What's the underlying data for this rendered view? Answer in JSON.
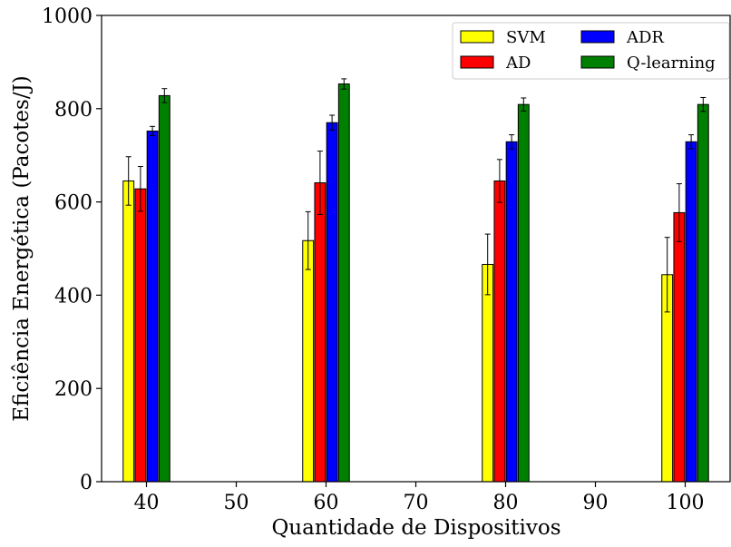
{
  "chart_data": {
    "type": "bar",
    "title": "",
    "xlabel": "Quantidade de Dispositivos",
    "ylabel": "Eficiência Energética (Pacotes/J)",
    "xlim": [
      35,
      105
    ],
    "ylim": [
      0,
      1000
    ],
    "xticks": [
      40,
      50,
      60,
      70,
      80,
      90,
      100
    ],
    "yticks": [
      0,
      200,
      400,
      600,
      800,
      1000
    ],
    "grid": false,
    "legend_position": "top-right",
    "legend_columns": 2,
    "bar_width_data_units": 1.2,
    "categories": [
      40,
      60,
      80,
      100
    ],
    "series": [
      {
        "name": "SVM",
        "color": "#ffff00",
        "offset": -2.0,
        "values": [
          645,
          517,
          466,
          444
        ],
        "errors": [
          52,
          62,
          65,
          80
        ]
      },
      {
        "name": "AD",
        "color": "#ff0000",
        "offset": -0.667,
        "values": [
          628,
          641,
          645,
          577
        ],
        "errors": [
          48,
          68,
          46,
          62
        ]
      },
      {
        "name": "ADR",
        "color": "#0000ff",
        "offset": 0.667,
        "values": [
          752,
          770,
          729,
          729
        ],
        "errors": [
          10,
          16,
          15,
          15
        ]
      },
      {
        "name": "Q-learning",
        "color": "#008000",
        "offset": 2.0,
        "values": [
          828,
          853,
          809,
          809
        ],
        "errors": [
          15,
          11,
          14,
          15
        ]
      }
    ]
  }
}
